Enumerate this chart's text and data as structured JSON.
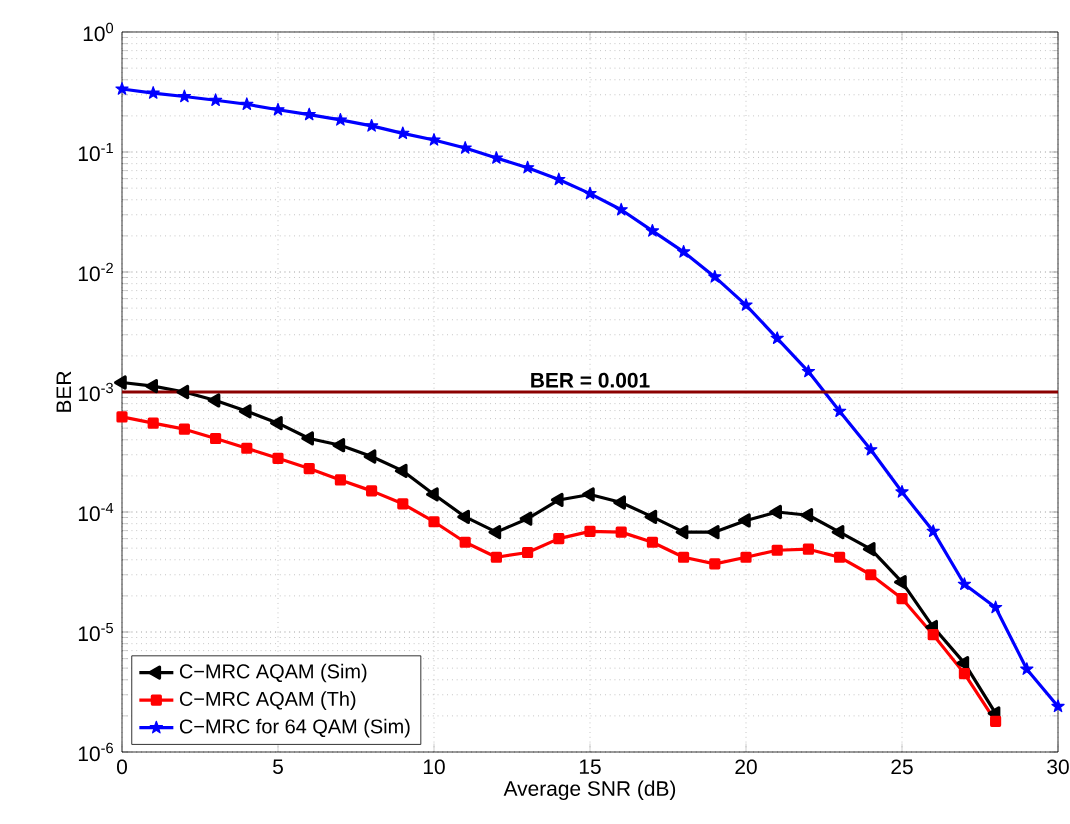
{
  "chart_data": {
    "type": "line",
    "xlabel": "Average SNR (dB)",
    "ylabel": "BER",
    "log": "y",
    "grid": true,
    "legend": "bottom left",
    "line_style": "solid",
    "xlim": [
      0,
      30
    ],
    "xticks": [
      0,
      5,
      10,
      15,
      20,
      25,
      30
    ],
    "ylim": [
      1e-06,
      1
    ],
    "yticks": [
      {
        "value": 1e-06,
        "label": "10$^{-6}$"
      },
      {
        "value": 1e-05,
        "label": "10$^{-5}$"
      },
      {
        "value": 0.0001,
        "label": "10$^{-4}$"
      },
      {
        "value": 0.001,
        "label": "10$^{-3}$"
      },
      {
        "value": 0.01,
        "label": "10$^{-2}$"
      },
      {
        "value": 0.1,
        "label": "10$^{-1}$"
      },
      {
        "value": 1,
        "label": "10$^{0}$"
      }
    ],
    "ref_lines": [
      {
        "axis": "y",
        "value": 0.001,
        "label": "BER = 0.001",
        "color": "#8b0000"
      }
    ],
    "series": [
      {
        "name": "C−MRC AQAM (Sim)",
        "color": "#000000",
        "marker": "triangle",
        "x": [
          0,
          1,
          2,
          3,
          4,
          5,
          6,
          7,
          8,
          9,
          10,
          11,
          12,
          13,
          14,
          15,
          16,
          17,
          18,
          19,
          20,
          21,
          22,
          23,
          24,
          25,
          26,
          27,
          28
        ],
        "values": [
          0.0012,
          0.00112,
          0.001,
          0.00085,
          0.00069,
          0.00055,
          0.00041,
          0.00036,
          0.00029,
          0.00022,
          0.00014,
          9.1e-05,
          6.8e-05,
          8.8e-05,
          0.000126,
          0.00014,
          0.00012,
          9.1e-05,
          6.8e-05,
          6.8e-05,
          8.5e-05,
          0.0001,
          9.4e-05,
          6.8e-05,
          4.9e-05,
          2.6e-05,
          1.1e-05,
          5.5e-06,
          2.1e-06
        ]
      },
      {
        "name": "C−MRC AQAM (Th)",
        "color": "#ff0000",
        "marker": "square",
        "x": [
          0,
          1,
          2,
          3,
          4,
          5,
          6,
          7,
          8,
          9,
          10,
          11,
          12,
          13,
          14,
          15,
          16,
          17,
          18,
          19,
          20,
          21,
          22,
          23,
          24,
          25,
          26,
          27,
          28
        ],
        "values": [
          0.00062,
          0.00055,
          0.00049,
          0.00041,
          0.00034,
          0.00028,
          0.00023,
          0.000185,
          0.00015,
          0.000117,
          8.3e-05,
          5.6e-05,
          4.2e-05,
          4.6e-05,
          6e-05,
          6.9e-05,
          6.8e-05,
          5.6e-05,
          4.2e-05,
          3.7e-05,
          4.2e-05,
          4.8e-05,
          4.9e-05,
          4.2e-05,
          3e-05,
          1.9e-05,
          9.5e-06,
          4.5e-06,
          1.8e-06
        ]
      },
      {
        "name": "C−MRC for 64 QAM (Sim)",
        "color": "#0000ff",
        "marker": "star",
        "x": [
          0,
          1,
          2,
          3,
          4,
          5,
          6,
          7,
          8,
          9,
          10,
          11,
          12,
          13,
          14,
          15,
          16,
          17,
          18,
          19,
          20,
          21,
          22,
          23,
          24,
          25,
          26,
          27,
          28,
          29,
          30
        ],
        "values": [
          0.335,
          0.31,
          0.29,
          0.27,
          0.25,
          0.225,
          0.205,
          0.185,
          0.165,
          0.143,
          0.126,
          0.108,
          0.089,
          0.074,
          0.059,
          0.045,
          0.033,
          0.022,
          0.0147,
          0.0091,
          0.0053,
          0.0028,
          0.00148,
          0.00069,
          0.00033,
          0.000147,
          6.9e-05,
          2.5e-05,
          1.6e-05,
          4.9e-06,
          2.4e-06
        ]
      }
    ]
  }
}
